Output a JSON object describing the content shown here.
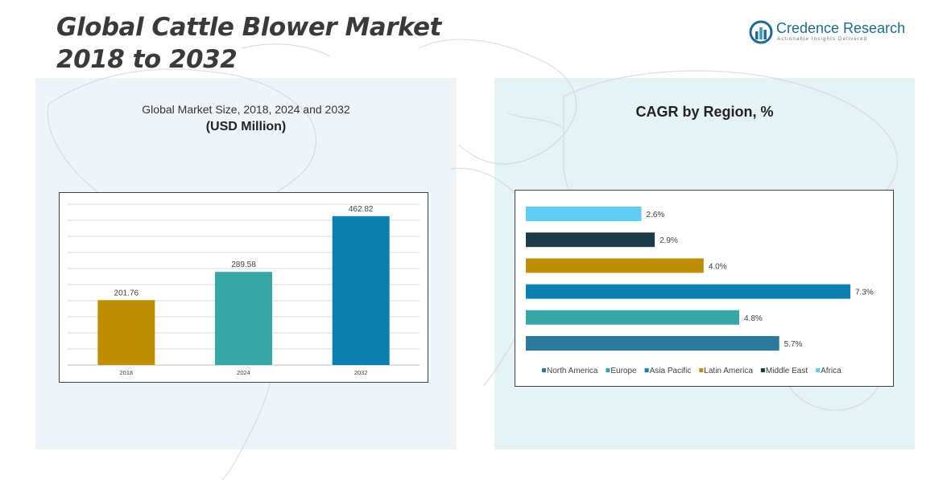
{
  "page": {
    "title_line1": "Global Cattle Blower Market",
    "title_line2": "2018 to 2032"
  },
  "logo": {
    "name": "Credence Research",
    "tagline": "Actionable Insights Delivered"
  },
  "colors": {
    "text_dark": "#3a3a3a",
    "panel_left": "#eef4f8",
    "panel_right": "#e6f3f4",
    "brand": "#1d6b93"
  },
  "chart_data": [
    {
      "type": "bar",
      "title": "Global Market Size, 2018, 2024 and 2032",
      "subtitle": "(USD Million)",
      "categories": [
        "2018",
        "2024",
        "2032"
      ],
      "values": [
        201.76,
        289.58,
        462.82
      ],
      "value_labels": [
        "201.76",
        "289.58",
        "462.82"
      ],
      "colors": [
        "#be8e00",
        "#37a7a5",
        "#0b80b0"
      ],
      "ylim": [
        0,
        500
      ],
      "grid": true
    },
    {
      "type": "bar",
      "orientation": "horizontal",
      "title": "CAGR by Region, %",
      "categories": [
        "Africa",
        "Middle East",
        "Latin America",
        "Asia Pacific",
        "Europe",
        "North America"
      ],
      "values": [
        2.6,
        2.9,
        4.0,
        7.3,
        4.8,
        5.7
      ],
      "value_labels": [
        "2.6%",
        "2.9%",
        "4.0%",
        "7.3%",
        "4.8%",
        "5.7%"
      ],
      "colors": [
        "#60cdf4",
        "#1b3b48",
        "#be8e00",
        "#0b80b0",
        "#37a7a5",
        "#2b7a9b"
      ],
      "xlim": [
        0,
        7.5
      ],
      "legend_position": "bottom",
      "legend": [
        {
          "name": "North America",
          "color": "#2b7a9b"
        },
        {
          "name": "Europe",
          "color": "#37a7a5"
        },
        {
          "name": "Asia Pacific",
          "color": "#0b80b0"
        },
        {
          "name": "Latin America",
          "color": "#be8e00"
        },
        {
          "name": "Middle East",
          "color": "#1b3b48"
        },
        {
          "name": "Africa",
          "color": "#60cdf4"
        }
      ]
    }
  ]
}
